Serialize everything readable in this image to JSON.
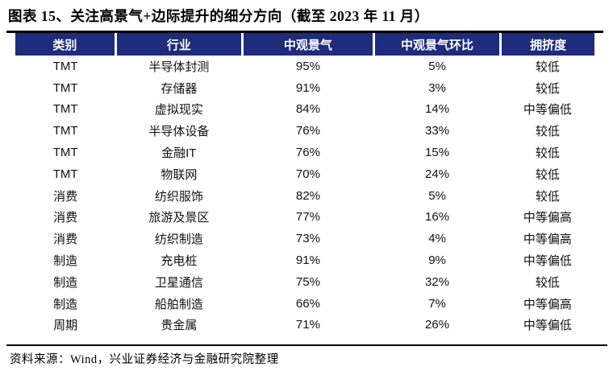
{
  "title": "图表 15、关注高景气+边际提升的细分方向（截至 2023 年 11 月）",
  "colors": {
    "header_bg": "#1F2B7C",
    "header_text": "#FFFFFF",
    "rule": "#000000",
    "body_text": "#111111"
  },
  "chart_data": {
    "type": "table",
    "title": "图表 15、关注高景气+边际提升的细分方向（截至 2023 年 11 月）",
    "columns": [
      "类别",
      "行业",
      "中观景气",
      "中观景气环比",
      "拥挤度"
    ],
    "rows": [
      [
        "TMT",
        "半导体封测",
        "95%",
        "5%",
        "较低"
      ],
      [
        "TMT",
        "存储器",
        "91%",
        "3%",
        "较低"
      ],
      [
        "TMT",
        "虚拟现实",
        "84%",
        "14%",
        "中等偏低"
      ],
      [
        "TMT",
        "半导体设备",
        "76%",
        "33%",
        "较低"
      ],
      [
        "TMT",
        "金融IT",
        "76%",
        "15%",
        "较低"
      ],
      [
        "TMT",
        "物联网",
        "70%",
        "24%",
        "较低"
      ],
      [
        "消费",
        "纺织服饰",
        "82%",
        "5%",
        "较低"
      ],
      [
        "消费",
        "旅游及景区",
        "77%",
        "16%",
        "中等偏高"
      ],
      [
        "消费",
        "纺织制造",
        "73%",
        "4%",
        "中等偏高"
      ],
      [
        "制造",
        "充电桩",
        "91%",
        "9%",
        "中等偏低"
      ],
      [
        "制造",
        "卫星通信",
        "75%",
        "32%",
        "较低"
      ],
      [
        "制造",
        "船舶制造",
        "66%",
        "7%",
        "中等偏高"
      ],
      [
        "周期",
        "贵金属",
        "71%",
        "26%",
        "中等偏低"
      ]
    ]
  },
  "footer": {
    "source_label": "资料来源：Wind，兴业证券经济与金融研究院整理"
  }
}
